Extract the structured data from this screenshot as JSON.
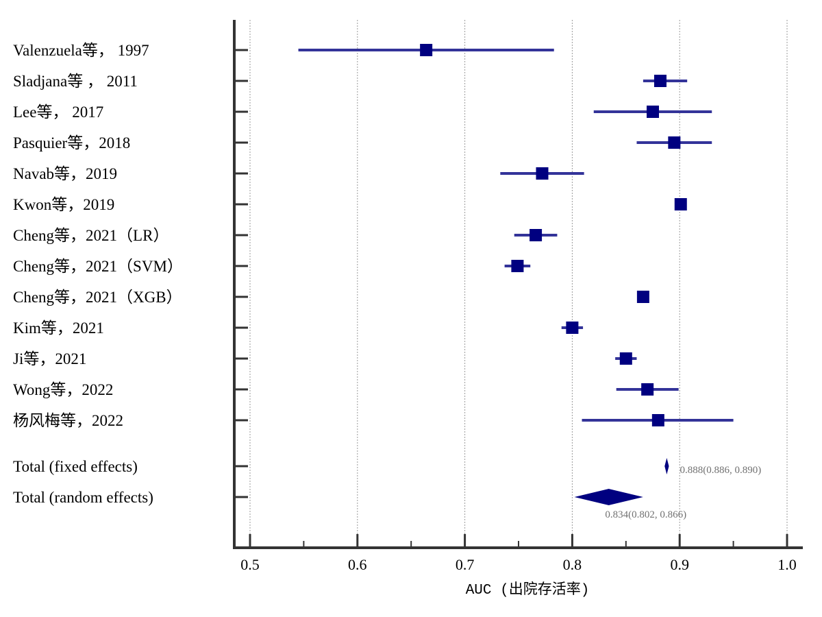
{
  "chart_data": {
    "type": "forest",
    "title": "",
    "xlabel": "AUC (出院存活率)",
    "ylabel": "",
    "xlim": [
      0.5,
      1.0
    ],
    "xticks": [
      "0.5",
      "0.6",
      "0.7",
      "0.8",
      "0.9",
      "1.0"
    ],
    "grid": "vertical dotted",
    "studies": [
      {
        "label": "Valenzuela等， 1997",
        "auc": 0.664,
        "lower": 0.545,
        "upper": 0.783
      },
      {
        "label": "Sladjana等 ， 2011",
        "auc": 0.882,
        "lower": 0.866,
        "upper": 0.907
      },
      {
        "label": "Lee等， 2017",
        "auc": 0.875,
        "lower": 0.82,
        "upper": 0.93
      },
      {
        "label": "Pasquier等，2018",
        "auc": 0.895,
        "lower": 0.86,
        "upper": 0.93
      },
      {
        "label": "Navab等，2019",
        "auc": 0.772,
        "lower": 0.733,
        "upper": 0.811
      },
      {
        "label": "Kwon等，2019",
        "auc": 0.901,
        "lower": 0.899,
        "upper": 0.903
      },
      {
        "label": "Cheng等，2021（LR）",
        "auc": 0.766,
        "lower": 0.746,
        "upper": 0.786
      },
      {
        "label": "Cheng等，2021（SVM）",
        "auc": 0.749,
        "lower": 0.737,
        "upper": 0.761
      },
      {
        "label": "Cheng等，2021（XGB）",
        "auc": 0.866,
        "lower": 0.864,
        "upper": 0.868
      },
      {
        "label": "Kim等，2021",
        "auc": 0.8,
        "lower": 0.79,
        "upper": 0.81
      },
      {
        "label": "Ji等，2021",
        "auc": 0.85,
        "lower": 0.84,
        "upper": 0.86
      },
      {
        "label": "Wong等，2022",
        "auc": 0.87,
        "lower": 0.841,
        "upper": 0.899
      },
      {
        "label": "杨风梅等，2022",
        "auc": 0.88,
        "lower": 0.809,
        "upper": 0.95
      }
    ],
    "summaries": [
      {
        "label": "Total (fixed effects)",
        "auc": 0.888,
        "lower": 0.886,
        "upper": 0.89,
        "text": "0.888(0.886, 0.890)"
      },
      {
        "label": "Total (random effects)",
        "auc": 0.834,
        "lower": 0.802,
        "upper": 0.866,
        "text": "0.834(0.802, 0.866)"
      }
    ],
    "colors": {
      "marker": "#000080",
      "ci_line": "#333399",
      "axis": "#333333",
      "grid": "#999999",
      "summary_text": "#707070"
    }
  }
}
